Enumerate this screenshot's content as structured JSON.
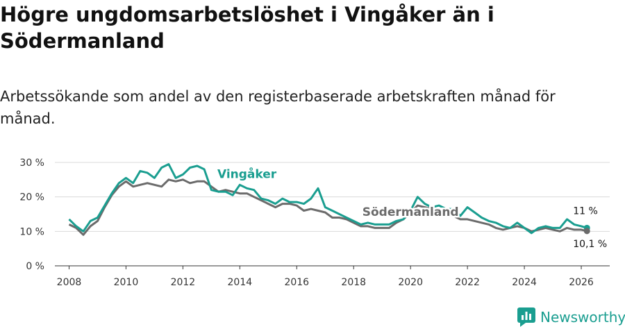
{
  "title": "Högre ungdomsarbetslöshet i Vingåker än i Södermanland",
  "subtitle": "Arbetssökande som andel av den registerbaserade arbetskraften månad för månad.",
  "brand": {
    "name": "Newsworthy",
    "icon": "newsworthy-logo-icon",
    "color": "#1a9e90"
  },
  "chart_data": {
    "type": "line",
    "ylim": [
      0,
      30
    ],
    "xlim": [
      2007.5,
      2027.0
    ],
    "yticks": [
      0,
      10,
      20,
      30
    ],
    "ytick_labels": [
      "0 %",
      "10 %",
      "20 %",
      "30 %"
    ],
    "xticks": [
      2008,
      2010,
      2012,
      2014,
      2016,
      2018,
      2020,
      2022,
      2024,
      2026
    ],
    "xtick_labels": [
      "2008",
      "2010",
      "2012",
      "2014",
      "2016",
      "2018",
      "2020",
      "2022",
      "2024",
      "2026"
    ],
    "grid": true,
    "series": [
      {
        "name": "Vingåker",
        "color": "#1a9e90",
        "end_label": "11 %",
        "x": [
          2008.0,
          2008.25,
          2008.5,
          2008.75,
          2009.0,
          2009.25,
          2009.5,
          2009.75,
          2010.0,
          2010.25,
          2010.5,
          2010.75,
          2011.0,
          2011.25,
          2011.5,
          2011.75,
          2012.0,
          2012.25,
          2012.5,
          2012.75,
          2013.0,
          2013.25,
          2013.5,
          2013.75,
          2014.0,
          2014.25,
          2014.5,
          2014.75,
          2015.0,
          2015.25,
          2015.5,
          2015.75,
          2016.0,
          2016.25,
          2016.5,
          2016.75,
          2017.0,
          2017.25,
          2017.5,
          2017.75,
          2018.0,
          2018.25,
          2018.5,
          2018.75,
          2019.0,
          2019.25,
          2019.5,
          2019.75,
          2020.0,
          2020.25,
          2020.5,
          2020.75,
          2021.0,
          2021.25,
          2021.5,
          2021.75,
          2022.0,
          2022.25,
          2022.5,
          2022.75,
          2023.0,
          2023.25,
          2023.5,
          2023.75,
          2024.0,
          2024.25,
          2024.5,
          2024.75,
          2025.0,
          2025.25,
          2025.5,
          2025.75,
          2026.0,
          2026.2
        ],
        "values": [
          13.5,
          11.5,
          10.0,
          13.0,
          14.0,
          17.5,
          21.0,
          24.0,
          25.5,
          24.0,
          27.5,
          27.0,
          25.5,
          28.5,
          29.5,
          25.5,
          26.5,
          28.5,
          29.0,
          28.0,
          22.0,
          21.5,
          21.5,
          20.5,
          23.5,
          22.5,
          22.0,
          19.5,
          19.0,
          18.0,
          19.5,
          18.5,
          18.5,
          18.0,
          19.5,
          22.5,
          17.0,
          16.0,
          15.0,
          14.0,
          13.0,
          12.0,
          12.5,
          12.0,
          12.0,
          12.0,
          13.0,
          13.5,
          16.0,
          20.0,
          18.0,
          17.0,
          17.5,
          16.5,
          16.5,
          14.5,
          17.0,
          15.5,
          14.0,
          13.0,
          12.5,
          11.5,
          11.0,
          12.5,
          11.0,
          9.5,
          11.0,
          11.5,
          11.0,
          11.0,
          13.5,
          12.0,
          11.5,
          11.0
        ]
      },
      {
        "name": "Södermanland",
        "color": "#6b6b6b",
        "end_label": "10,1 %",
        "x": [
          2008.0,
          2008.25,
          2008.5,
          2008.75,
          2009.0,
          2009.25,
          2009.5,
          2009.75,
          2010.0,
          2010.25,
          2010.5,
          2010.75,
          2011.0,
          2011.25,
          2011.5,
          2011.75,
          2012.0,
          2012.25,
          2012.5,
          2012.75,
          2013.0,
          2013.25,
          2013.5,
          2013.75,
          2014.0,
          2014.25,
          2014.5,
          2014.75,
          2015.0,
          2015.25,
          2015.5,
          2015.75,
          2016.0,
          2016.25,
          2016.5,
          2016.75,
          2017.0,
          2017.25,
          2017.5,
          2017.75,
          2018.0,
          2018.25,
          2018.5,
          2018.75,
          2019.0,
          2019.25,
          2019.5,
          2019.75,
          2020.0,
          2020.25,
          2020.5,
          2020.75,
          2021.0,
          2021.25,
          2021.5,
          2021.75,
          2022.0,
          2022.25,
          2022.5,
          2022.75,
          2023.0,
          2023.25,
          2023.5,
          2023.75,
          2024.0,
          2024.25,
          2024.5,
          2024.75,
          2025.0,
          2025.25,
          2025.5,
          2025.75,
          2026.0,
          2026.2
        ],
        "values": [
          12.0,
          11.0,
          9.0,
          11.5,
          13.0,
          17.0,
          20.5,
          23.0,
          24.5,
          23.0,
          23.5,
          24.0,
          23.5,
          23.0,
          25.0,
          24.5,
          25.0,
          24.0,
          24.5,
          24.5,
          23.0,
          21.5,
          22.0,
          21.5,
          21.0,
          21.0,
          20.0,
          19.0,
          18.0,
          17.0,
          18.0,
          18.0,
          17.5,
          16.0,
          16.5,
          16.0,
          15.5,
          14.0,
          14.0,
          13.5,
          12.5,
          11.5,
          11.5,
          11.0,
          11.0,
          11.0,
          12.5,
          13.5,
          15.5,
          17.5,
          17.0,
          16.5,
          16.0,
          15.0,
          14.5,
          13.5,
          13.5,
          13.0,
          12.5,
          12.0,
          11.0,
          10.5,
          11.0,
          11.5,
          11.0,
          10.0,
          10.5,
          11.0,
          10.5,
          10.0,
          11.0,
          10.5,
          10.5,
          10.1
        ]
      }
    ],
    "annotations": [
      {
        "text": "Vingåker",
        "series": "Vingåker",
        "x": 2014.25,
        "y": 25.5
      },
      {
        "text": "Södermanland",
        "series": "Södermanland",
        "x": 2020.0,
        "y": 14.5
      }
    ]
  }
}
